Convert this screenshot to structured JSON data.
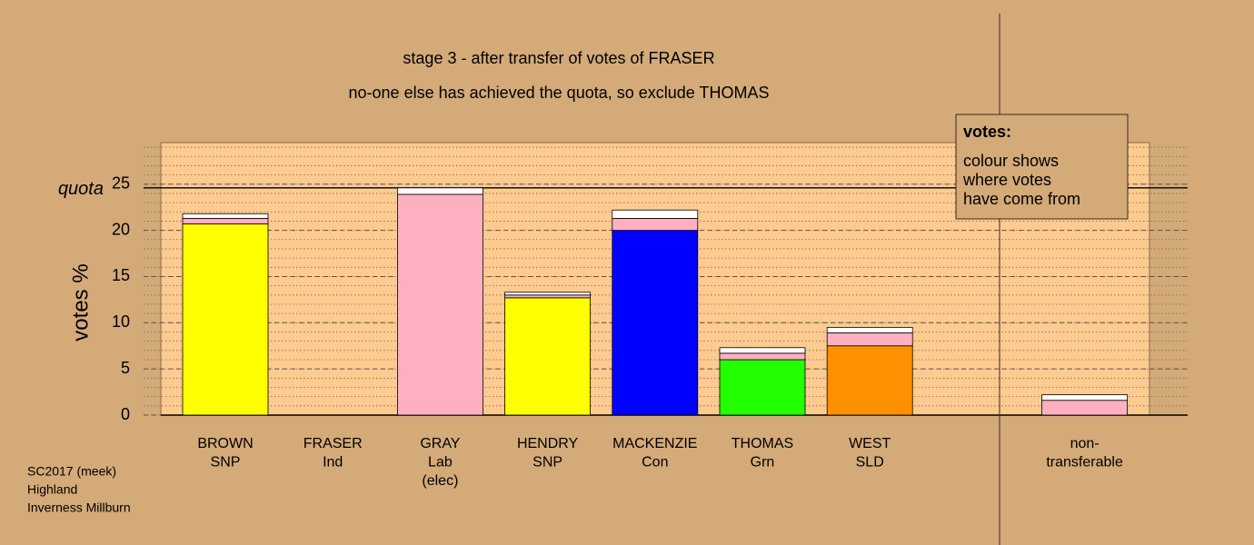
{
  "chart_data": {
    "type": "bar",
    "stacked": true,
    "title": "stage 3 - after transfer of votes of FRASER",
    "subtitle": "no-one else has achieved the quota, so exclude THOMAS",
    "y_label": "votes %",
    "categories": [
      [
        "BROWN",
        "SNP"
      ],
      [
        "FRASER",
        "Ind"
      ],
      [
        "GRAY",
        "Lab",
        "(elec)"
      ],
      [
        "HENDRY",
        "SNP"
      ],
      [
        "MACKENZIE",
        "Con"
      ],
      [
        "THOMAS",
        "Grn"
      ],
      [
        "WEST",
        "SLD"
      ],
      null,
      [
        "non-",
        "transferable"
      ]
    ],
    "series": [
      {
        "colors": [
          "#ffff00",
          "#ffff00",
          "#ffb0c0",
          "#ffff00",
          "#0000ff",
          "#22ff00",
          "#ff9000",
          null,
          "#ffb0c0"
        ],
        "values": [
          20.7,
          0,
          23.9,
          12.7,
          20.0,
          6.0,
          7.5,
          null,
          0
        ]
      },
      {
        "color": "#ffb0c0",
        "values": [
          0.6,
          0,
          0,
          0.3,
          1.3,
          0.7,
          1.4,
          null,
          1.6
        ]
      },
      {
        "color": "#ffffff",
        "values": [
          0.5,
          0,
          0.7,
          0.3,
          0.9,
          0.6,
          0.6,
          null,
          0.6
        ]
      }
    ],
    "quota": {
      "value": 24.6,
      "label": "quota"
    },
    "ylim": [
      0,
      29.5
    ],
    "yticks": [
      0,
      5,
      10,
      15,
      20,
      25
    ],
    "grid": true,
    "minor_grid": true,
    "legend_box": [
      "votes:",
      "colour shows",
      "where votes",
      "have come from"
    ],
    "footer": [
      "SC2017 (meek)",
      "Highland",
      "Inverness Millburn"
    ]
  }
}
